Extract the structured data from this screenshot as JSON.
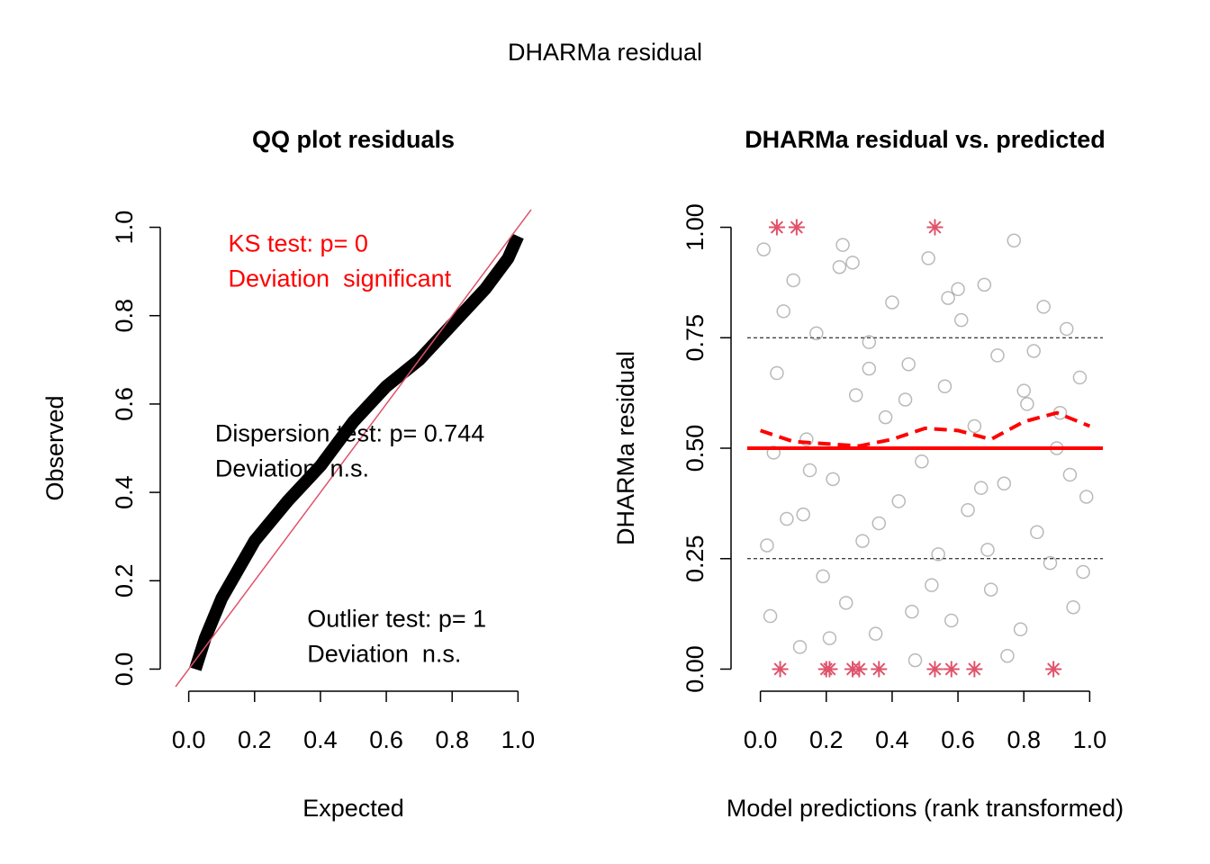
{
  "title": "DHARMa residual",
  "chart_data": [
    {
      "type": "qq",
      "title": "QQ plot residuals",
      "xlabel": "Expected",
      "ylabel": "Observed",
      "x": [
        0.02,
        0.05,
        0.1,
        0.2,
        0.3,
        0.4,
        0.5,
        0.6,
        0.7,
        0.8,
        0.9,
        0.97,
        1.0
      ],
      "values": [
        0.0,
        0.07,
        0.16,
        0.29,
        0.38,
        0.46,
        0.56,
        0.64,
        0.7,
        0.78,
        0.86,
        0.93,
        0.98
      ],
      "color": "#000000",
      "reference_color": "#df536b",
      "xlim": [
        -0.04,
        1.04
      ],
      "ylim": [
        -0.05,
        1.05
      ],
      "xticks": [
        {
          "value": 0,
          "label": "0.0"
        },
        {
          "value": 0.2,
          "label": "0.2"
        },
        {
          "value": 0.4,
          "label": "0.4"
        },
        {
          "value": 0.6,
          "label": "0.6"
        },
        {
          "value": 0.8,
          "label": "0.8"
        },
        {
          "value": 1,
          "label": "1.0"
        }
      ],
      "yticks": [
        {
          "value": 0,
          "label": "0.0"
        },
        {
          "value": 0.2,
          "label": "0.2"
        },
        {
          "value": 0.4,
          "label": "0.4"
        },
        {
          "value": 0.6,
          "label": "0.6"
        },
        {
          "value": 0.8,
          "label": "0.8"
        },
        {
          "value": 1,
          "label": "1.0"
        }
      ],
      "annotations": [
        {
          "lines": [
            "KS test: p= 0",
            "Deviation  significant"
          ],
          "color": "#ff0000",
          "x": 0.12,
          "y": 0.96
        },
        {
          "lines": [
            "Dispersion test: p= 0.744",
            "Deviation  n.s."
          ],
          "color": "#000000",
          "x": 0.08,
          "y": 0.53
        },
        {
          "lines": [
            "Outlier test: p= 1",
            "Deviation  n.s."
          ],
          "color": "#000000",
          "x": 0.36,
          "y": 0.11
        }
      ]
    },
    {
      "type": "scatter",
      "title": "DHARMa residual vs. predicted",
      "xlabel": "Model predictions (rank transformed)",
      "ylabel": "DHARMa residual",
      "x": [
        0.01,
        0.03,
        0.05,
        0.08,
        0.1,
        0.12,
        0.14,
        0.17,
        0.19,
        0.22,
        0.24,
        0.26,
        0.29,
        0.31,
        0.33,
        0.35,
        0.38,
        0.4,
        0.42,
        0.45,
        0.47,
        0.49,
        0.51,
        0.54,
        0.56,
        0.58,
        0.61,
        0.63,
        0.65,
        0.68,
        0.7,
        0.72,
        0.74,
        0.77,
        0.79,
        0.81,
        0.84,
        0.86,
        0.88,
        0.9,
        0.93,
        0.95,
        0.97,
        0.99,
        0.02,
        0.07,
        0.15,
        0.21,
        0.28,
        0.36,
        0.44,
        0.52,
        0.6,
        0.67,
        0.75,
        0.83,
        0.91,
        0.98,
        0.04,
        0.13,
        0.25,
        0.33,
        0.46,
        0.57,
        0.69,
        0.8,
        0.94
      ],
      "values": [
        0.95,
        0.12,
        0.67,
        0.34,
        0.88,
        0.05,
        0.52,
        0.76,
        0.21,
        0.43,
        0.91,
        0.15,
        0.62,
        0.29,
        0.74,
        0.08,
        0.57,
        0.83,
        0.38,
        0.69,
        0.02,
        0.47,
        0.93,
        0.26,
        0.64,
        0.11,
        0.79,
        0.36,
        0.55,
        0.87,
        0.18,
        0.71,
        0.42,
        0.97,
        0.09,
        0.6,
        0.31,
        0.82,
        0.24,
        0.5,
        0.77,
        0.14,
        0.66,
        0.39,
        0.28,
        0.81,
        0.45,
        0.07,
        0.92,
        0.33,
        0.61,
        0.19,
        0.86,
        0.41,
        0.03,
        0.72,
        0.58,
        0.22,
        0.49,
        0.35,
        0.96,
        0.68,
        0.13,
        0.84,
        0.27,
        0.63,
        0.44
      ],
      "color": "#808080",
      "outliers": {
        "x": [
          0.05,
          0.11,
          0.53,
          0.06,
          0.2,
          0.21,
          0.28,
          0.3,
          0.36,
          0.53,
          0.58,
          0.65,
          0.89
        ],
        "values": [
          1,
          1,
          1,
          0,
          0,
          0,
          0,
          0,
          0,
          0,
          0,
          0,
          0
        ],
        "color": "#df536b"
      },
      "hlines": [
        0.25,
        0.75
      ],
      "reference": 0.5,
      "reference_color": "#ff0000",
      "smooth": {
        "x": [
          0,
          0.1,
          0.2,
          0.3,
          0.4,
          0.5,
          0.6,
          0.7,
          0.8,
          0.9,
          1.0
        ],
        "values": [
          0.54,
          0.515,
          0.51,
          0.505,
          0.52,
          0.545,
          0.54,
          0.52,
          0.56,
          0.58,
          0.55
        ],
        "color": "#ff0000"
      },
      "xlim": [
        -0.04,
        1.04
      ],
      "ylim": [
        -0.05,
        1.05
      ],
      "xticks": [
        {
          "value": 0,
          "label": "0.0"
        },
        {
          "value": 0.2,
          "label": "0.2"
        },
        {
          "value": 0.4,
          "label": "0.4"
        },
        {
          "value": 0.6,
          "label": "0.6"
        },
        {
          "value": 0.8,
          "label": "0.8"
        },
        {
          "value": 1,
          "label": "1.0"
        }
      ],
      "yticks": [
        {
          "value": 0,
          "label": "0.00"
        },
        {
          "value": 0.25,
          "label": "0.25"
        },
        {
          "value": 0.5,
          "label": "0.50"
        },
        {
          "value": 0.75,
          "label": "0.75"
        },
        {
          "value": 1,
          "label": "1.00"
        }
      ]
    }
  ]
}
